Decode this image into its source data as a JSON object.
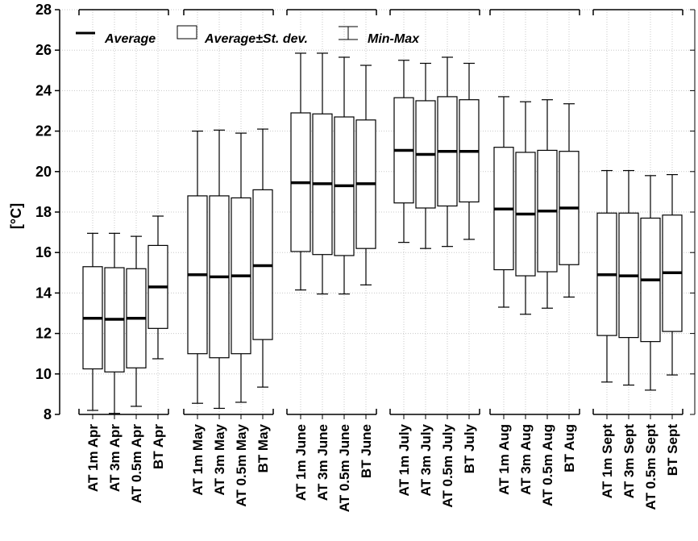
{
  "chart_data": {
    "type": "boxplot",
    "ylabel": "[°C]",
    "ylim": [
      8,
      28
    ],
    "yticks": [
      8,
      10,
      12,
      14,
      16,
      18,
      20,
      22,
      24,
      26,
      28
    ],
    "grid": true,
    "legend": {
      "placement": "top-left",
      "entries": [
        {
          "symbol": "line",
          "label": "Average"
        },
        {
          "symbol": "box",
          "label": "Average±St. dev."
        },
        {
          "symbol": "whisker",
          "label": "Min-Max"
        }
      ]
    },
    "groups": [
      {
        "categories": [
          "AT 1m Apr",
          "AT 3m Apr",
          "AT 0.5m Apr",
          "BT Apr"
        ],
        "min": [
          8.2,
          8.05,
          8.4,
          10.75
        ],
        "lower": [
          10.25,
          10.1,
          10.3,
          12.25
        ],
        "mean": [
          12.75,
          12.7,
          12.75,
          14.3
        ],
        "upper": [
          15.3,
          15.25,
          15.2,
          16.35
        ],
        "max": [
          16.95,
          16.95,
          16.8,
          17.8
        ]
      },
      {
        "categories": [
          "AT 1m May",
          "AT 3m May",
          "AT 0.5m May",
          "BT May"
        ],
        "min": [
          8.55,
          8.3,
          8.6,
          9.35
        ],
        "lower": [
          11.0,
          10.8,
          11.0,
          11.7
        ],
        "mean": [
          14.9,
          14.8,
          14.85,
          15.35
        ],
        "upper": [
          18.8,
          18.8,
          18.7,
          19.1
        ],
        "max": [
          22.0,
          22.05,
          21.9,
          22.1
        ]
      },
      {
        "categories": [
          "AT 1m June",
          "AT 3m June",
          "AT 0.5m June",
          "BT June"
        ],
        "min": [
          14.15,
          13.95,
          13.95,
          14.4
        ],
        "lower": [
          16.05,
          15.9,
          15.85,
          16.2
        ],
        "mean": [
          19.45,
          19.4,
          19.3,
          19.4
        ],
        "upper": [
          22.9,
          22.85,
          22.7,
          22.55
        ],
        "max": [
          25.85,
          25.85,
          25.65,
          25.25
        ]
      },
      {
        "categories": [
          "AT 1m July",
          "AT 3m July",
          "AT 0.5m July",
          "BT July"
        ],
        "min": [
          16.5,
          16.2,
          16.3,
          16.65
        ],
        "lower": [
          18.45,
          18.2,
          18.3,
          18.5
        ],
        "mean": [
          21.05,
          20.85,
          21.0,
          21.0
        ],
        "upper": [
          23.65,
          23.5,
          23.7,
          23.55
        ],
        "max": [
          25.5,
          25.35,
          25.65,
          25.35
        ]
      },
      {
        "categories": [
          "AT 1m Aug",
          "AT 3m Aug",
          "AT 0.5m Aug",
          "BT Aug"
        ],
        "min": [
          13.3,
          12.95,
          13.25,
          13.8
        ],
        "lower": [
          15.15,
          14.85,
          15.05,
          15.4
        ],
        "mean": [
          18.15,
          17.9,
          18.05,
          18.2
        ],
        "upper": [
          21.2,
          20.95,
          21.05,
          21.0
        ],
        "max": [
          23.7,
          23.45,
          23.55,
          23.35
        ]
      },
      {
        "categories": [
          "AT 1m Sept",
          "AT 3m Sept",
          "AT 0.5m Sept",
          "BT Sept"
        ],
        "min": [
          9.6,
          9.45,
          9.2,
          9.95
        ],
        "lower": [
          11.9,
          11.8,
          11.6,
          12.1
        ],
        "mean": [
          14.9,
          14.85,
          14.65,
          15.0
        ],
        "upper": [
          17.95,
          17.95,
          17.7,
          17.85
        ],
        "max": [
          20.05,
          20.05,
          19.8,
          19.85
        ]
      }
    ]
  }
}
